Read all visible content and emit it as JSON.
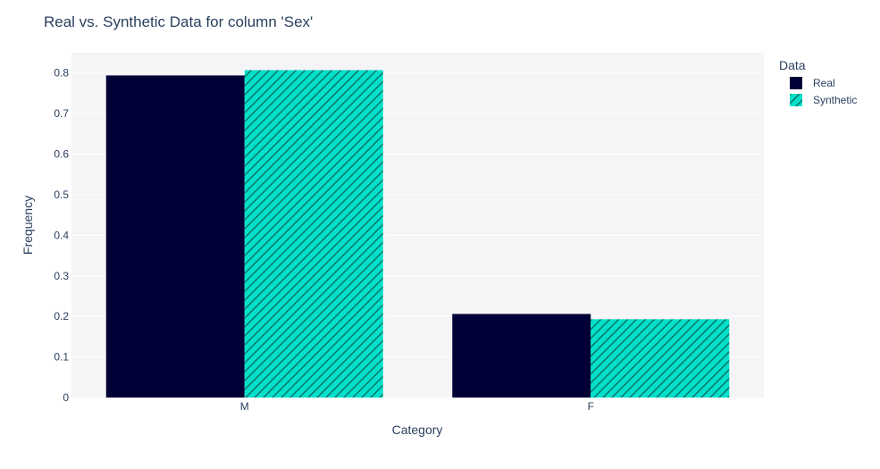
{
  "chart_data": {
    "type": "bar",
    "title": "Real vs. Synthetic Data for column 'Sex'",
    "xlabel": "Category",
    "ylabel": "Frequency",
    "categories": [
      "M",
      "F"
    ],
    "ylim": [
      0,
      0.85
    ],
    "yticks": [
      0,
      0.1,
      0.2,
      0.3,
      0.4,
      0.5,
      0.6,
      0.7,
      0.8
    ],
    "grid": true,
    "legend": {
      "title": "Data",
      "placement": "top-right, outside plot"
    },
    "series": [
      {
        "name": "Real",
        "values": [
          0.794,
          0.206
        ],
        "color": "#000036",
        "pattern": "solid"
      },
      {
        "name": "Synthetic",
        "values": [
          0.807,
          0.193
        ],
        "color": "#01E0C9",
        "pattern": "diagonal-hatch"
      }
    ],
    "plot_background": "#F5F5F8"
  }
}
